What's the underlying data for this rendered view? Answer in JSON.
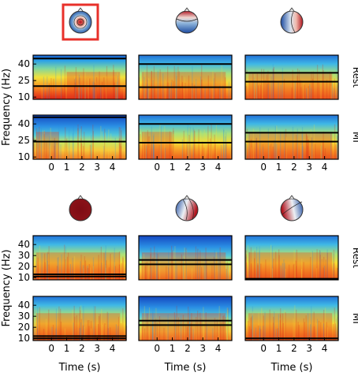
{
  "figure": {
    "row_labels": [
      "Rest",
      "MI"
    ],
    "ylabel": "Frequency (Hz)",
    "xlabel": "Time (s)",
    "highlight_color": "#e8302a"
  },
  "chart_data": [
    {
      "type": "heatmap",
      "group": 1,
      "topomaps": [
        {
          "pattern": "central-focal-positive",
          "highlighted": true
        },
        {
          "pattern": "frontal-positive-posterior-negative",
          "highlighted": false
        },
        {
          "pattern": "right-positive-left-negative",
          "highlighted": false
        }
      ],
      "panels": [
        {
          "row": "Rest",
          "col": 1,
          "bands_hz": [
            45,
            20
          ],
          "hot_region": [
            1,
            4.5
          ]
        },
        {
          "row": "Rest",
          "col": 2,
          "bands_hz": [
            40,
            19
          ],
          "hot_region": [
            -1,
            4.5
          ]
        },
        {
          "row": "Rest",
          "col": 3,
          "bands_hz": [
            32,
            24
          ],
          "hot_region": [
            -1,
            4.5
          ]
        },
        {
          "row": "MI",
          "col": 1,
          "bands_hz": [
            46,
            24
          ],
          "hot_region": [
            -1,
            0.5
          ]
        },
        {
          "row": "MI",
          "col": 2,
          "bands_hz": [
            40,
            23
          ],
          "hot_region": [
            -1,
            1
          ]
        },
        {
          "row": "MI",
          "col": 3,
          "bands_hz": [
            32,
            24
          ],
          "hot_region": [
            -1,
            4.5
          ]
        }
      ],
      "x_ticks": [
        0,
        1,
        2,
        3,
        4
      ],
      "y_ticks": [
        10,
        25,
        40
      ],
      "xlim": [
        -1.2,
        4.9
      ],
      "ylim": [
        8,
        48
      ]
    },
    {
      "type": "heatmap",
      "group": 2,
      "topomaps": [
        {
          "pattern": "global-positive",
          "highlighted": false
        },
        {
          "pattern": "right-positive-left-negative-strong",
          "highlighted": false
        },
        {
          "pattern": "left-positive-right-negative",
          "highlighted": false
        }
      ],
      "panels": [
        {
          "row": "Rest",
          "col": 1,
          "bands_hz": [
            13,
            11
          ],
          "hot_region": [
            -1,
            4.5
          ]
        },
        {
          "row": "Rest",
          "col": 2,
          "bands_hz": [
            26,
            22
          ],
          "hot_region": [
            -1,
            4.5
          ]
        },
        {
          "row": "Rest",
          "col": 3,
          "bands_hz": [
            9
          ],
          "hot_region": [
            -1,
            4.5
          ]
        },
        {
          "row": "MI",
          "col": 1,
          "bands_hz": [
            12,
            10
          ],
          "hot_region": [
            -1,
            4.5
          ]
        },
        {
          "row": "MI",
          "col": 2,
          "bands_hz": [
            26,
            22
          ],
          "hot_region": [
            -1,
            4.5
          ]
        },
        {
          "row": "MI",
          "col": 3,
          "bands_hz": [
            10
          ],
          "hot_region": [
            -1,
            4.5
          ]
        }
      ],
      "x_ticks": [
        0,
        1,
        2,
        3,
        4
      ],
      "y_ticks": [
        10,
        20,
        30,
        40
      ],
      "xlim": [
        -1.2,
        4.9
      ],
      "ylim": [
        8,
        48
      ]
    }
  ]
}
